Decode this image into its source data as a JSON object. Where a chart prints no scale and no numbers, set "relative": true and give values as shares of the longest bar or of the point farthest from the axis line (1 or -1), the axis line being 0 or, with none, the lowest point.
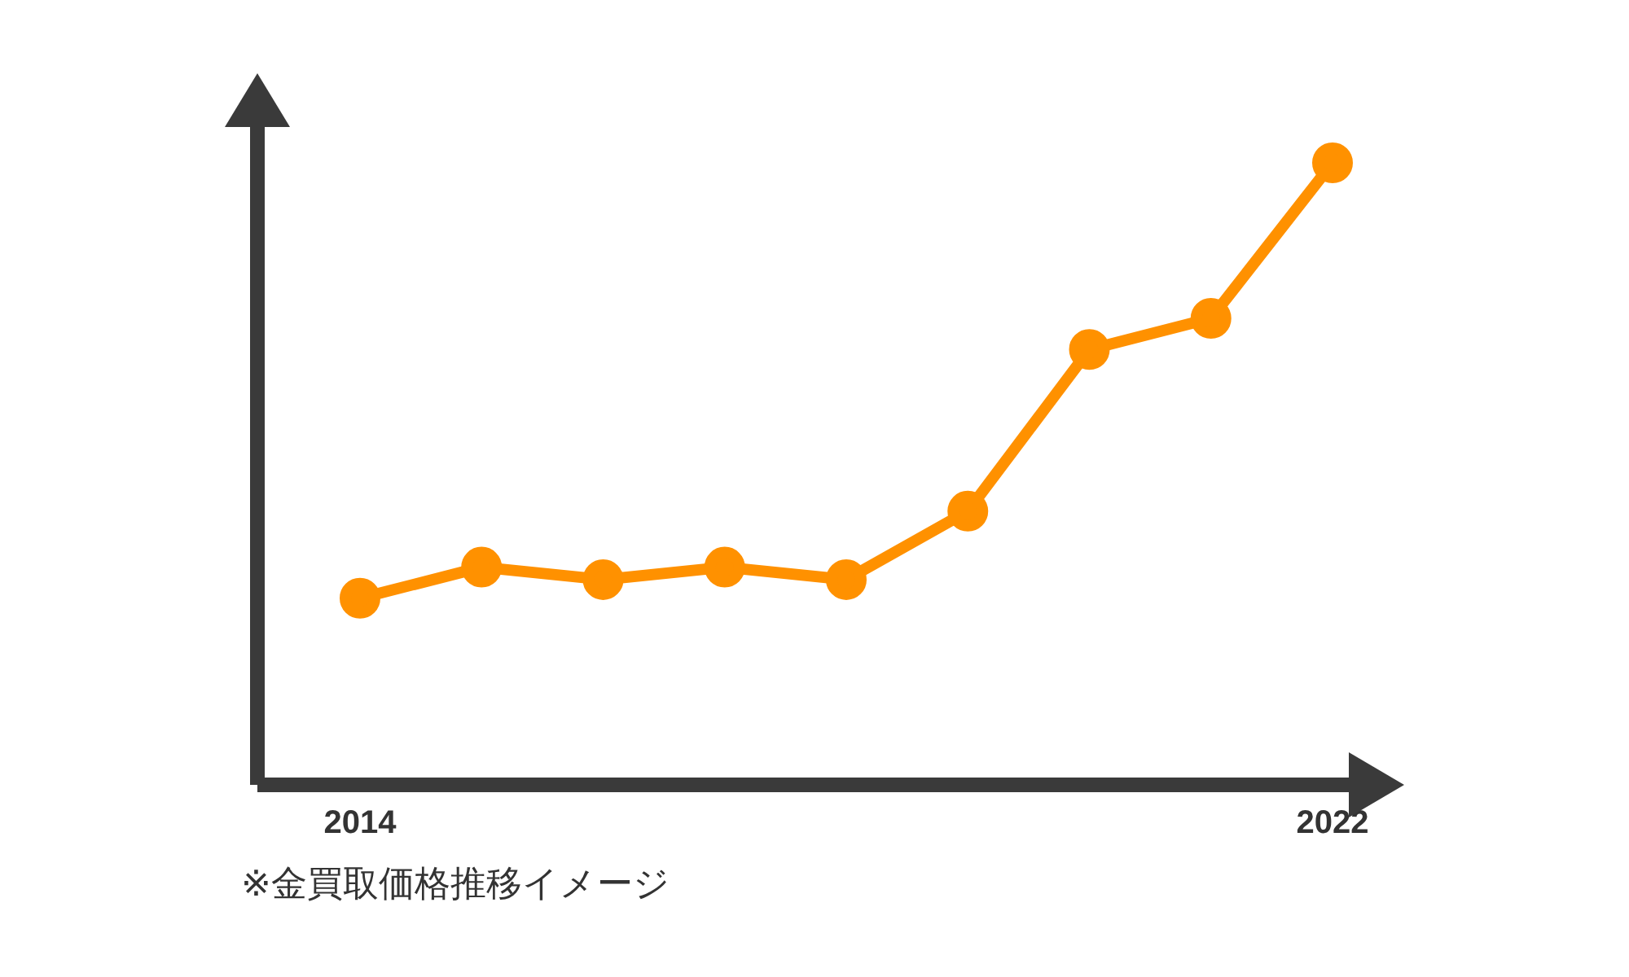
{
  "chart_data": {
    "type": "line",
    "relative": true,
    "categories": [
      "2014",
      null,
      null,
      null,
      null,
      null,
      null,
      null,
      "2022"
    ],
    "series": [
      {
        "color": "#ff9100",
        "values": [
          0.3,
          0.35,
          0.33,
          0.35,
          0.33,
          0.44,
          0.7,
          0.75,
          1
        ]
      }
    ],
    "marker": "circle",
    "line_style": "solid",
    "grid": false,
    "legend": false,
    "annotations": [
      "※金買取価格推移イメージ"
    ]
  }
}
